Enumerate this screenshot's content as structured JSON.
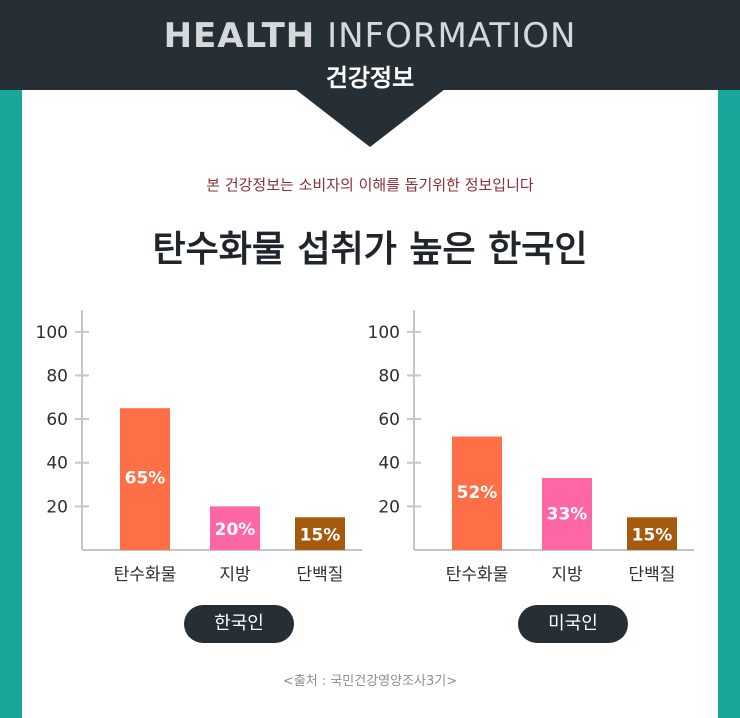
{
  "header": {
    "title_bold": "HEALTH",
    "title_light": "INFORMATION",
    "subtitle": "건강정보"
  },
  "notice": "본 건강정보는 소비자의 이해를 돕기위한 정보입니다",
  "title": "탄수화물 섭취가 높은 한국인",
  "source": "<출처 : 국민건강영양조사3기>",
  "colors": {
    "background": "#1aa79b",
    "header": "#262f36",
    "carbohydrate": "#ff6f47",
    "fat": "#ff66a6",
    "protein": "#a55a0e"
  },
  "chart_data": [
    {
      "type": "bar",
      "label": "한국인",
      "categories": [
        "탄수화물",
        "지방",
        "단백질"
      ],
      "values": [
        65,
        20,
        15
      ],
      "data_labels": [
        "65%",
        "20%",
        "15%"
      ],
      "bar_colors": [
        "#ff6f47",
        "#ff66a6",
        "#a55a0e"
      ],
      "yticks": [
        20,
        40,
        60,
        80,
        100
      ],
      "ylim": [
        0,
        110
      ]
    },
    {
      "type": "bar",
      "label": "미국인",
      "categories": [
        "탄수화물",
        "지방",
        "단백질"
      ],
      "values": [
        52,
        33,
        15
      ],
      "data_labels": [
        "52%",
        "33%",
        "15%"
      ],
      "bar_colors": [
        "#ff6f47",
        "#ff66a6",
        "#a55a0e"
      ],
      "yticks": [
        20,
        40,
        60,
        80,
        100
      ],
      "ylim": [
        0,
        110
      ]
    }
  ]
}
